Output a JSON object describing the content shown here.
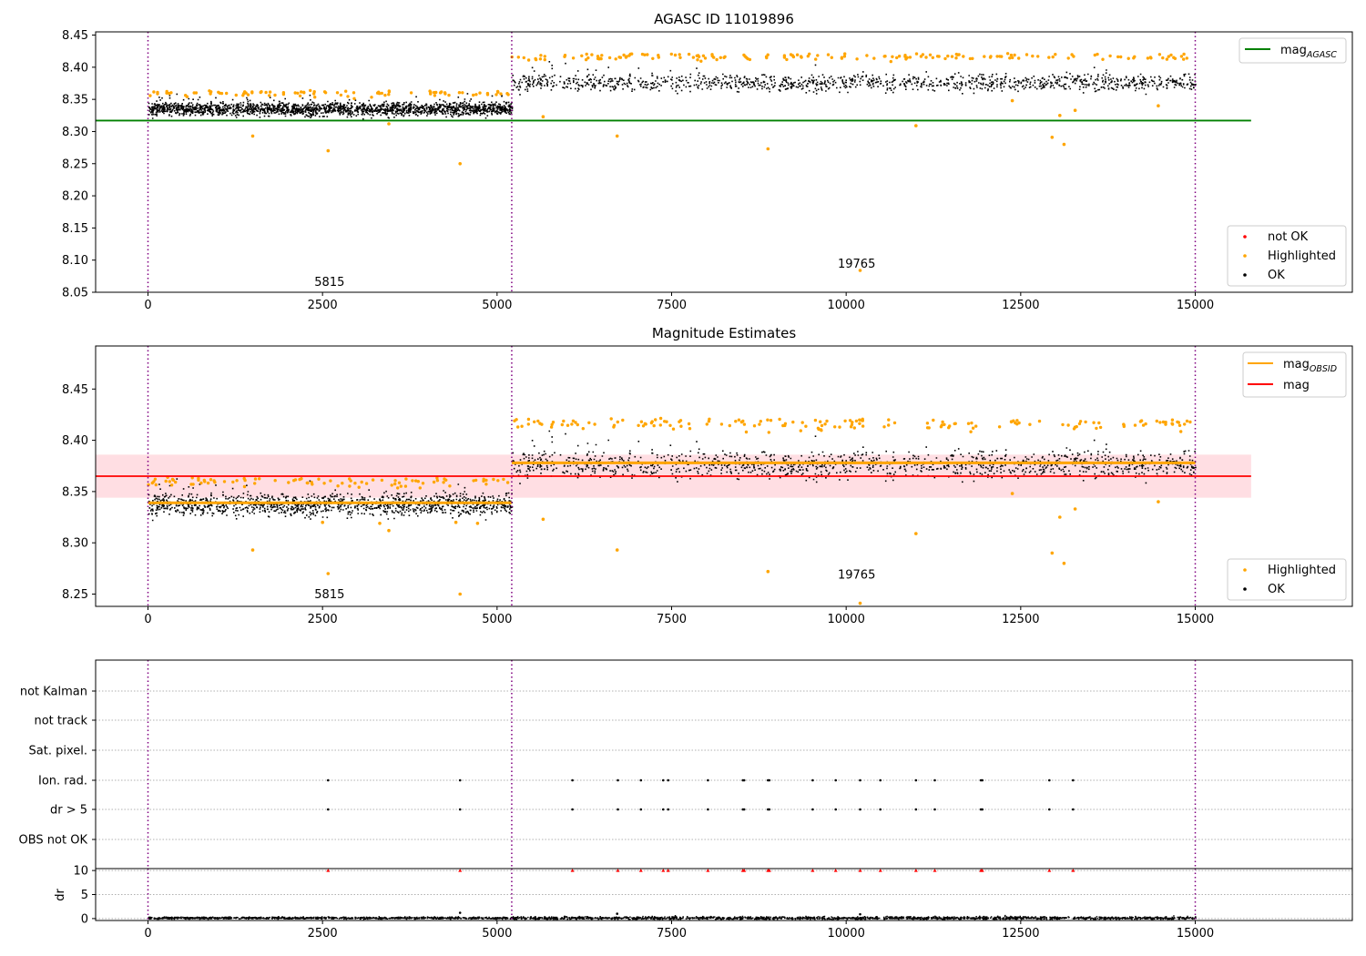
{
  "chart_data": [
    {
      "type": "scatter",
      "title": "AGASC ID 11019896",
      "xlabel": "",
      "ylabel": "",
      "xlim": [
        -750,
        17250
      ],
      "ylim": [
        8.05,
        8.455
      ],
      "xticks": [
        0,
        2500,
        5000,
        7500,
        10000,
        12500,
        15000
      ],
      "yticks": [
        8.05,
        8.1,
        8.15,
        8.2,
        8.25,
        8.3,
        8.35,
        8.4,
        8.45
      ],
      "ytick_labels": [
        "8.05",
        "8.10",
        "8.15",
        "8.20",
        "8.25",
        "8.30",
        "8.35",
        "8.40",
        "8.45"
      ],
      "obs_boundaries": [
        0,
        5210,
        15000
      ],
      "obs_labels": [
        {
          "text": "5815",
          "x": 2600,
          "y": 8.06
        },
        {
          "text": "19765",
          "x": 10150,
          "y": 8.088
        }
      ],
      "hlines": [
        {
          "name": "mag_AGASC",
          "label_main": "mag",
          "label_sub": "AGASC",
          "y": 8.317,
          "x": [
            -750,
            15800
          ],
          "color": "#008000"
        }
      ],
      "series": [
        {
          "name": "not OK",
          "color": "#ff0000",
          "points": []
        },
        {
          "name": "Highlighted",
          "color": "#ffa500",
          "points": [
            [
              1500,
              8.293
            ],
            [
              2580,
              8.27
            ],
            [
              3450,
              8.312
            ],
            [
              4470,
              8.25
            ],
            [
              5660,
              8.323
            ],
            [
              6720,
              8.293
            ],
            [
              8880,
              8.273
            ],
            [
              11000,
              8.309
            ],
            [
              12380,
              8.348
            ],
            [
              12950,
              8.291
            ],
            [
              13060,
              8.325
            ],
            [
              13120,
              8.28
            ],
            [
              13280,
              8.333
            ],
            [
              14470,
              8.34
            ],
            [
              10200,
              8.084
            ]
          ]
        },
        {
          "name": "OK",
          "color": "#000000",
          "points": []
        }
      ],
      "band_segments": [
        {
          "x": [
            0,
            5210
          ],
          "mean": 8.336,
          "spread": 0.007,
          "peak": 8.364
        },
        {
          "x": [
            5210,
            15000
          ],
          "mean": 8.377,
          "spread": 0.009,
          "peak": 8.422
        }
      ],
      "legend_top": {
        "position": "upper-right",
        "entries": [
          "mag_AGASC"
        ]
      },
      "legend_bottom": {
        "position": "lower-right",
        "entries": [
          "not OK",
          "Highlighted",
          "OK"
        ]
      }
    },
    {
      "type": "scatter",
      "title": "Magnitude Estimates",
      "xlabel": "",
      "ylabel": "",
      "xlim": [
        -750,
        17250
      ],
      "ylim": [
        8.238,
        8.492
      ],
      "xticks": [
        0,
        2500,
        5000,
        7500,
        10000,
        12500,
        15000
      ],
      "yticks": [
        8.25,
        8.3,
        8.35,
        8.4,
        8.45
      ],
      "ytick_labels": [
        "8.25",
        "8.30",
        "8.35",
        "8.40",
        "8.45"
      ],
      "obs_boundaries": [
        0,
        5210,
        15000
      ],
      "obs_labels": [
        {
          "text": "5815",
          "x": 2600,
          "y": 8.246
        },
        {
          "text": "19765",
          "x": 10150,
          "y": 8.265
        }
      ],
      "mag_band": {
        "y": [
          8.344,
          8.386
        ],
        "x": [
          -750,
          15800
        ],
        "color": "#ffb6c1"
      },
      "hlines": [
        {
          "name": "mag_OBSID",
          "label_main": "mag",
          "label_sub": "OBSID",
          "segments": [
            {
              "x": [
                0,
                5210
              ],
              "y": 8.339
            },
            {
              "x": [
                5210,
                15000
              ],
              "y": 8.378
            }
          ],
          "color": "#ffa500"
        },
        {
          "name": "mag",
          "label_main": "mag",
          "label_sub": "",
          "y": 8.365,
          "x": [
            -750,
            15800
          ],
          "color": "#ff0000"
        }
      ],
      "series": [
        {
          "name": "Highlighted",
          "color": "#ffa500",
          "points": [
            [
              1500,
              8.293
            ],
            [
              2580,
              8.27
            ],
            [
              2500,
              8.32
            ],
            [
              3450,
              8.312
            ],
            [
              3320,
              8.319
            ],
            [
              4470,
              8.25
            ],
            [
              4410,
              8.32
            ],
            [
              4720,
              8.319
            ],
            [
              5660,
              8.323
            ],
            [
              6720,
              8.293
            ],
            [
              8880,
              8.272
            ],
            [
              11000,
              8.309
            ],
            [
              12380,
              8.348
            ],
            [
              12950,
              8.29
            ],
            [
              13060,
              8.325
            ],
            [
              13120,
              8.28
            ],
            [
              13280,
              8.333
            ],
            [
              14470,
              8.34
            ],
            [
              10200,
              8.241
            ]
          ]
        },
        {
          "name": "OK",
          "color": "#000000",
          "points": []
        }
      ],
      "band_segments": [
        {
          "x": [
            0,
            5210
          ],
          "mean": 8.338,
          "spread": 0.0075,
          "peak": 8.364
        },
        {
          "x": [
            5210,
            15000
          ],
          "mean": 8.377,
          "spread": 0.009,
          "peak": 8.422
        }
      ],
      "legend_top": {
        "position": "upper-right",
        "entries": [
          "mag_OBSID",
          "mag"
        ]
      },
      "legend_bottom": {
        "position": "lower-right",
        "entries": [
          "Highlighted",
          "OK"
        ]
      }
    },
    {
      "type": "scatter",
      "title": "",
      "xlabel": "",
      "ylabel": "",
      "xlim": [
        -750,
        17250
      ],
      "xticks": [
        0,
        2500,
        5000,
        7500,
        10000,
        12500,
        15000
      ],
      "obs_boundaries": [
        0,
        5210,
        15000
      ],
      "flag_rows": [
        "not Kalman",
        "not track",
        "Sat. pixel.",
        "Ion. rad.",
        "dr > 5",
        "OBS not OK"
      ],
      "flag_points": {
        "Ion. rad.": [
          2580,
          4470,
          6080,
          6730,
          7060,
          7380,
          7450,
          8020,
          8520,
          8540,
          8880,
          8900,
          9520,
          9850,
          10200,
          10490,
          11000,
          11270,
          11930,
          11950,
          12910,
          13250
        ],
        "dr > 5": [
          2580,
          4470,
          6080,
          6730,
          7060,
          7380,
          7450,
          8020,
          8520,
          8540,
          8880,
          8900,
          9520,
          9850,
          10200,
          10490,
          11000,
          11270,
          11930,
          11950,
          12910,
          13250
        ]
      }
    },
    {
      "type": "scatter",
      "title": "",
      "xlabel": "",
      "ylabel": "dr",
      "xlim": [
        -750,
        17250
      ],
      "ylim": [
        -0.4,
        10.4
      ],
      "xticks": [
        0,
        2500,
        5000,
        7500,
        10000,
        12500,
        15000
      ],
      "yticks": [
        0,
        5,
        10
      ],
      "ytick_labels": [
        "0",
        "5",
        "10"
      ],
      "obs_boundaries": [
        0,
        5210,
        15000
      ],
      "clipped_points": {
        "color": "#ff0000",
        "y": 10,
        "x": [
          2580,
          4470,
          6080,
          6730,
          7060,
          7380,
          7450,
          8020,
          8520,
          8540,
          8880,
          8900,
          9520,
          9850,
          10200,
          10490,
          11000,
          11270,
          11930,
          11950,
          12910,
          13250
        ]
      },
      "series": [
        {
          "name": "dr",
          "color": "#000000",
          "mean": 0.25,
          "spread": 0.15,
          "outliers": [
            [
              4470,
              1.2
            ],
            [
              6720,
              1.0
            ],
            [
              10200,
              0.9
            ]
          ]
        }
      ]
    }
  ],
  "legend_labels": {
    "not_ok": "not OK",
    "highlighted": "Highlighted",
    "ok": "OK",
    "mag": "mag",
    "agasc_sub": "AGASC",
    "obsid_sub": "OBSID"
  }
}
